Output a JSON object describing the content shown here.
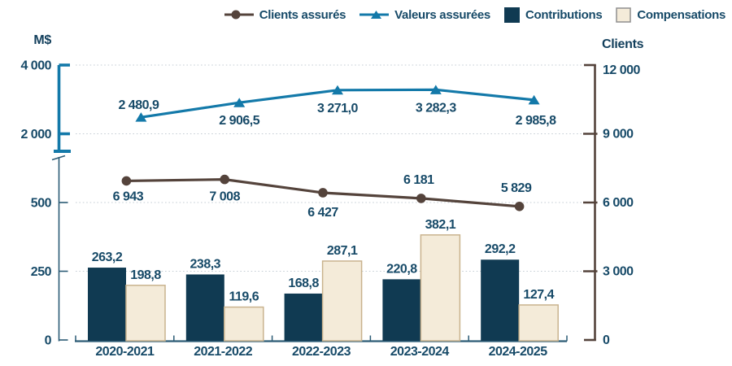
{
  "axes": {
    "left_title": "M$",
    "right_title": "Clients"
  },
  "legend_swatch_border": "#8F8F8F",
  "text_color": "#174A68",
  "gridline_color": "#C4CDD4",
  "chart_data": {
    "type": "combo",
    "categories": [
      "2020-2021",
      "2021-2022",
      "2022-2023",
      "2023-2024",
      "2024-2025"
    ],
    "series": [
      {
        "name": "Clients assurés",
        "type": "line",
        "marker": "circle",
        "axis": "right",
        "color": "#54433B",
        "values": [
          6943,
          7008,
          6427,
          6181,
          5829
        ],
        "labels": [
          "6 943",
          "7 008",
          "6 427",
          "6 181",
          "5 829"
        ],
        "label_position": [
          "below",
          "below",
          "below",
          "above",
          "above"
        ]
      },
      {
        "name": "Valeurs assurées",
        "type": "line",
        "marker": "triangle",
        "axis": "left-upper",
        "color": "#1379A9",
        "values": [
          2480.9,
          2906.5,
          3271,
          3282.3,
          2985.8
        ],
        "labels": [
          "2 480,9",
          "2 906,5",
          "3 271,0",
          "3 282,3",
          "2 985,8"
        ],
        "label_position": [
          "above",
          "below",
          "below",
          "below",
          "below"
        ]
      },
      {
        "name": "Contributions",
        "type": "bar",
        "axis": "left-lower",
        "color": "#103A52",
        "values": [
          263.2,
          238.3,
          168.8,
          220.8,
          292.2
        ],
        "labels": [
          "263,2",
          "238,3",
          "168,8",
          "220,8",
          "292,2"
        ]
      },
      {
        "name": "Compensations",
        "type": "bar",
        "axis": "left-lower",
        "color": "#F4EBD9",
        "border_color": "#C9B38E",
        "values": [
          198.8,
          119.6,
          287.1,
          382.1,
          127.4
        ],
        "labels": [
          "198,8",
          "119,6",
          "287,1",
          "382,1",
          "127,4"
        ]
      }
    ],
    "left_axis": {
      "title": "M$",
      "has_break": true,
      "lower_ticks": [
        0,
        250,
        500
      ],
      "lower_tick_labels": [
        "0",
        "250",
        "500"
      ],
      "lower_max": 500,
      "upper_ticks": [
        2000,
        4000
      ],
      "upper_tick_labels": [
        "2 000",
        "4 000"
      ],
      "upper_range": [
        2000,
        4000
      ],
      "color_lower": "#2B5B75",
      "color_upper": "#1379A9"
    },
    "right_axis": {
      "title": "Clients",
      "ticks": [
        0,
        3000,
        6000,
        9000,
        12000
      ],
      "tick_labels": [
        "0",
        "3 000",
        "6 000",
        "9 000",
        "12 000"
      ],
      "max": 12000,
      "color": "#54433B"
    },
    "grid": "dotted horizontal",
    "legend_position": "top-right"
  }
}
